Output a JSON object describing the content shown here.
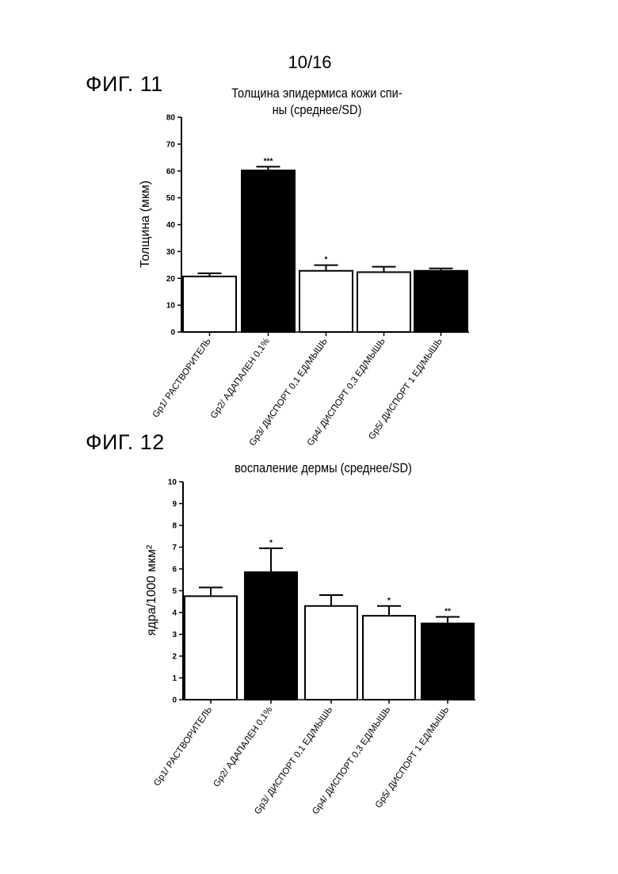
{
  "page": {
    "number": "10/16"
  },
  "figures": {
    "fig11": {
      "label": "ФИГ. 11",
      "title_line1": "Толщина эпидермиса кожи спи-",
      "title_line2": "ны (среднее/SD)"
    },
    "fig12": {
      "label": "ФИГ. 12",
      "title": "воспаление дермы (среднее/SD)"
    }
  },
  "chart_data": [
    {
      "type": "bar",
      "title": "Толщина эпидермиса кожи спины (среднее/SD)",
      "ylabel": "Толщина (мкм)",
      "ylim": [
        0,
        80
      ],
      "yticks": [
        "0",
        "10",
        "20",
        "30",
        "40",
        "50",
        "60",
        "70",
        "80"
      ],
      "categories": [
        "Gp1/ РАСТВОРИТЕЛЬ",
        "Gp2/ АДАПАЛЕН 0,1%",
        "Gp3/ ДИСПОРТ 0,1 ЕД/МЫШЬ",
        "Gp4/ ДИСПОРТ 0,3 ЕД/МЫШЬ",
        "Gp5/ ДИСПОРТ 1 ЕД/МЫШЬ"
      ],
      "values": [
        20.7,
        60.2,
        22.8,
        22.3,
        22.8
      ],
      "errors": [
        1.2,
        1.4,
        2.1,
        2.0,
        0.9
      ],
      "fills": [
        "#ffffff",
        "#000000",
        "#ffffff",
        "#ffffff",
        "#000000"
      ],
      "significance": [
        "",
        "***",
        "*",
        "",
        ""
      ]
    },
    {
      "type": "bar",
      "title": "воспаление дермы (среднее/SD)",
      "ylabel": "ядра/1000 мкм²",
      "ylim": [
        0,
        10
      ],
      "yticks": [
        "0",
        "1",
        "2",
        "3",
        "4",
        "5",
        "6",
        "7",
        "8",
        "9",
        "10"
      ],
      "categories": [
        "Gp1/ РАСТВОРИТЕЛЬ",
        "Gp2/ АДАПАЛЕН 0,1%",
        "Gp3/ ДИСПОРТ 0,1 ЕД/МЫШЬ",
        "Gp4/ ДИСПОРТ 0,3 ЕД/МЫШЬ",
        "Gp5/ ДИСПОРТ 1 ЕД/МЫШЬ"
      ],
      "values": [
        4.75,
        5.85,
        4.3,
        3.85,
        3.5
      ],
      "errors": [
        0.4,
        1.1,
        0.5,
        0.45,
        0.3
      ],
      "fills": [
        "#ffffff",
        "#000000",
        "#ffffff",
        "#ffffff",
        "#000000"
      ],
      "significance": [
        "",
        "*",
        "",
        "*",
        "**"
      ]
    }
  ]
}
